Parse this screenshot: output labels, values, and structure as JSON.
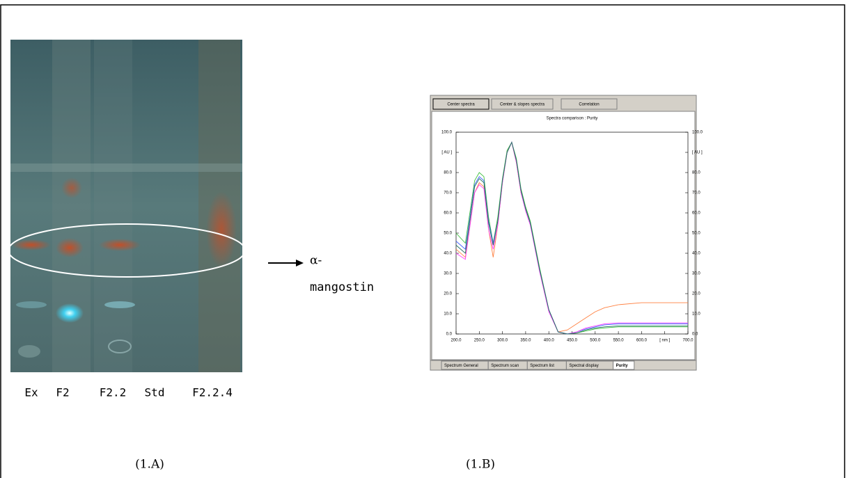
{
  "figure": {
    "lanes": [
      "Ex",
      "F2",
      "F2.2",
      "Std",
      "F2.2.4"
    ],
    "annotation": {
      "symbol": "α-",
      "text": "mangostin"
    },
    "panel_labels": [
      "(1.A)",
      "(1.B)"
    ]
  },
  "software": {
    "buttons": [
      "Center spectra",
      "Center & slopes spectra",
      "Correlation"
    ],
    "tabs": [
      "Spectrum General",
      "Spectrum scan",
      "Spectrum list",
      "Spectral display",
      "Purity"
    ]
  },
  "chart_data": {
    "type": "line",
    "title": "Spectra comparison : Purity",
    "x": [
      200,
      220,
      240,
      250,
      260,
      270,
      280,
      290,
      300,
      310,
      320,
      330,
      340,
      350,
      360,
      380,
      400,
      420,
      440,
      460,
      480,
      500,
      520,
      550,
      600,
      650,
      700
    ],
    "xlim": [
      200,
      700
    ],
    "xticks": [
      {
        "value": 200,
        "label": "200.0"
      },
      {
        "value": 250,
        "label": "250.0"
      },
      {
        "value": 300,
        "label": "300.0"
      },
      {
        "value": 350,
        "label": "350.0"
      },
      {
        "value": 400,
        "label": "400.0"
      },
      {
        "value": 450,
        "label": "450.0"
      },
      {
        "value": 500,
        "label": "500.0"
      },
      {
        "value": 550,
        "label": "550.0"
      },
      {
        "value": 600,
        "label": "600.0"
      },
      {
        "value": 650,
        "label": "[ nm ]"
      },
      {
        "value": 700,
        "label": "700.0"
      }
    ],
    "ylim": [
      0,
      100
    ],
    "yticks": [
      {
        "value": 0,
        "label": "0.0"
      },
      {
        "value": 10,
        "label": "10.0"
      },
      {
        "value": 20,
        "label": "20.0"
      },
      {
        "value": 30,
        "label": "30.0"
      },
      {
        "value": 40,
        "label": "40.0"
      },
      {
        "value": 50,
        "label": "50.0"
      },
      {
        "value": 60,
        "label": "60.0"
      },
      {
        "value": 70,
        "label": "70.0"
      },
      {
        "value": 80,
        "label": "80.0"
      },
      {
        "value": 90,
        "label": "[ AU ]"
      },
      {
        "value": 100,
        "label": "100.0"
      }
    ],
    "series": [
      {
        "color": "#ff8040",
        "values": [
          42,
          38,
          70,
          75,
          73,
          52,
          38,
          54,
          75,
          90,
          95,
          85,
          70,
          62,
          55,
          32,
          12,
          1,
          2,
          5,
          8,
          11,
          13,
          14.5,
          15.5,
          15.5,
          15.5
        ]
      },
      {
        "color": "#40c040",
        "values": [
          50,
          45,
          76,
          80,
          78,
          58,
          45,
          58,
          77,
          91,
          95,
          87,
          72,
          63,
          56,
          33,
          12,
          1,
          0,
          0.5,
          1.5,
          2.5,
          3,
          3.5,
          3.5,
          3.5,
          3.5
        ]
      },
      {
        "color": "#4060ff",
        "values": [
          46,
          42,
          74,
          78,
          76,
          56,
          45,
          56,
          76,
          90,
          95,
          86,
          71,
          62,
          55,
          32,
          12,
          1,
          0,
          1,
          2.5,
          3.5,
          4.5,
          5,
          5,
          5,
          5
        ]
      },
      {
        "color": "#ff40ff",
        "values": [
          40,
          37,
          70,
          74,
          72,
          52,
          42,
          54,
          75,
          90,
          95,
          85,
          70,
          61,
          54,
          31,
          11,
          1,
          0,
          1,
          3,
          4,
          5,
          5.5,
          5.5,
          5.5,
          5.5
        ]
      },
      {
        "color": "#207060",
        "values": [
          44,
          40,
          73,
          77,
          75,
          55,
          44,
          56,
          76,
          90,
          95,
          86,
          71,
          62,
          55,
          32,
          12,
          1,
          0,
          0.5,
          2,
          3,
          3.5,
          4,
          4,
          4,
          4
        ]
      }
    ]
  }
}
